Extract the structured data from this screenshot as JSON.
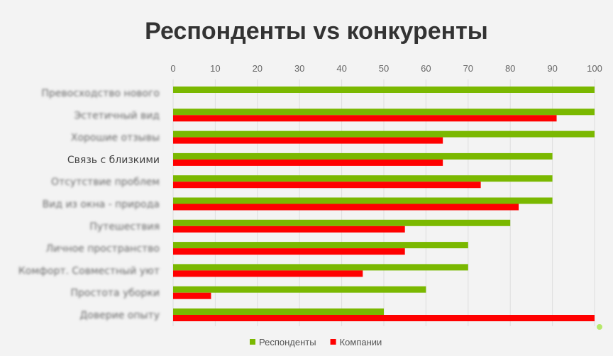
{
  "chart_data": {
    "type": "bar",
    "orientation": "horizontal",
    "title": "Респонденты vs конкуренты",
    "xlim": [
      0,
      100
    ],
    "xticks": [
      0,
      10,
      20,
      30,
      40,
      50,
      60,
      70,
      80,
      90,
      100
    ],
    "grid": true,
    "legend_position": "bottom",
    "categories": [
      "Превосходство нового",
      "Эстетичный вид",
      "Хорошие отзывы",
      "Связь с близкими",
      "Отсутствие проблем",
      "Вид из окна - природа",
      "Путешествия",
      "Личное пространство",
      "Комфорт. Совместный уют",
      "Простота уборки",
      "Доверие опыту"
    ],
    "blurred_categories": [
      0,
      1,
      2,
      4,
      5,
      6,
      7,
      8,
      9,
      10
    ],
    "series": [
      {
        "name": "Респонденты",
        "color": "#7ab800",
        "values": [
          100,
          100,
          100,
          90,
          90,
          90,
          80,
          70,
          70,
          60,
          50
        ]
      },
      {
        "name": "Компании",
        "color": "#ff0000",
        "values": [
          0,
          91,
          64,
          64,
          73,
          82,
          55,
          55,
          45,
          9,
          100
        ]
      }
    ]
  }
}
